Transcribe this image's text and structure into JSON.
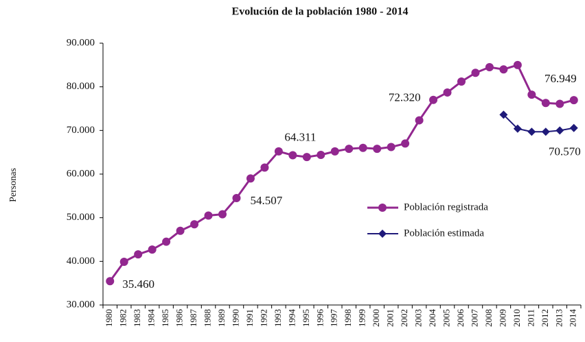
{
  "chart_data": {
    "type": "line",
    "title": "Evolución de la población 1980 - 2014",
    "y_label": "Personas",
    "categories": [
      "1980",
      "1982",
      "1983",
      "1984",
      "1985",
      "1986",
      "1987",
      "1988",
      "1989",
      "1990",
      "1991",
      "1992",
      "1993",
      "1994",
      "1995",
      "1996",
      "1997",
      "1998",
      "1999",
      "2000",
      "2001",
      "2002",
      "2003",
      "2004",
      "2005",
      "2006",
      "2007",
      "2008",
      "2009",
      "2010",
      "2011",
      "2012",
      "2013",
      "2014"
    ],
    "series": [
      {
        "name": "Población registrada",
        "color": "#92278f",
        "marker": "circle",
        "values": [
          35460,
          39900,
          41600,
          42700,
          44500,
          47000,
          48500,
          50500,
          50800,
          54507,
          59000,
          61500,
          65200,
          64311,
          63900,
          64400,
          65200,
          65800,
          66000,
          65800,
          66200,
          67000,
          72320,
          77000,
          78700,
          81200,
          83200,
          84500,
          84000,
          85000,
          78200,
          76300,
          76100,
          76949
        ],
        "value_labels": [
          "35.460",
          null,
          null,
          null,
          null,
          null,
          null,
          null,
          null,
          "54.507",
          null,
          null,
          null,
          "64.311",
          null,
          null,
          null,
          null,
          null,
          null,
          null,
          null,
          "72.320",
          null,
          null,
          null,
          null,
          null,
          null,
          null,
          null,
          null,
          null,
          "76.949"
        ]
      },
      {
        "name": "Población estimada",
        "color": "#1f1a7a",
        "marker": "diamond",
        "values": [
          null,
          null,
          null,
          null,
          null,
          null,
          null,
          null,
          null,
          null,
          null,
          null,
          null,
          null,
          null,
          null,
          null,
          null,
          null,
          null,
          null,
          null,
          null,
          null,
          null,
          null,
          null,
          null,
          73600,
          70400,
          69700,
          69700,
          70000,
          70570
        ],
        "value_labels": [
          null,
          null,
          null,
          null,
          null,
          null,
          null,
          null,
          null,
          null,
          null,
          null,
          null,
          null,
          null,
          null,
          null,
          null,
          null,
          null,
          null,
          null,
          null,
          null,
          null,
          null,
          null,
          null,
          null,
          null,
          null,
          null,
          null,
          "70.570"
        ]
      }
    ],
    "ylim": [
      30000,
      90000
    ],
    "yticks": [
      {
        "value": 30000,
        "label": "30.000"
      },
      {
        "value": 40000,
        "label": "40.000"
      },
      {
        "value": 50000,
        "label": "50.000"
      },
      {
        "value": 60000,
        "label": "60.000"
      },
      {
        "value": 70000,
        "label": "70.000"
      },
      {
        "value": 80000,
        "label": "80.000"
      },
      {
        "value": 90000,
        "label": "90.000"
      }
    ],
    "grid": false
  }
}
